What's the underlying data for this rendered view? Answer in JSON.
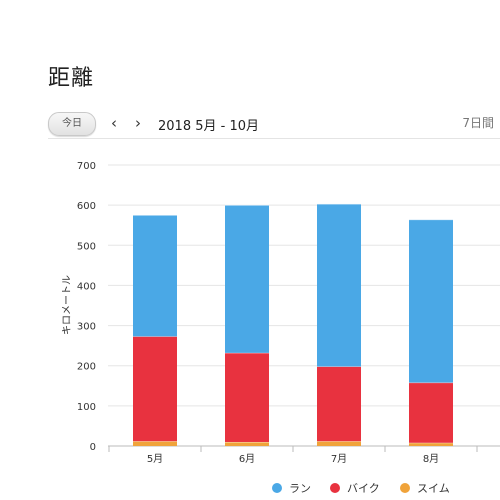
{
  "page": {
    "title": "距離"
  },
  "toolbar": {
    "today_label": "今日",
    "prev_icon": "chevron-left-icon",
    "next_icon": "chevron-right-icon",
    "date_range": "2018 5月 - 10月",
    "period_label": "7日間"
  },
  "colors": {
    "run": "#4aa8e6",
    "bike": "#e8323f",
    "swim": "#f0a33a",
    "grid": "#e5e5e5",
    "axis": "#bbbbbb"
  },
  "chart_data": {
    "type": "bar",
    "stacked": true,
    "categories": [
      "5月",
      "6月",
      "7月",
      "8月"
    ],
    "series": [
      {
        "name": "スイム",
        "values": [
          12,
          10,
          12,
          8
        ]
      },
      {
        "name": "バイク",
        "values": [
          261,
          222,
          186,
          150
        ]
      },
      {
        "name": "ラン",
        "values": [
          302,
          368,
          405,
          406
        ]
      }
    ],
    "ylabel": "キロメートル",
    "ylim": [
      0,
      700
    ],
    "yticks": [
      0,
      100,
      200,
      300,
      400,
      500,
      600,
      700
    ],
    "grid": true,
    "legend": "bottom"
  },
  "legend": {
    "items": [
      {
        "label": "ラン",
        "color": "#4aa8e6"
      },
      {
        "label": "バイク",
        "color": "#e8323f"
      },
      {
        "label": "スイム",
        "color": "#f0a33a"
      }
    ]
  }
}
